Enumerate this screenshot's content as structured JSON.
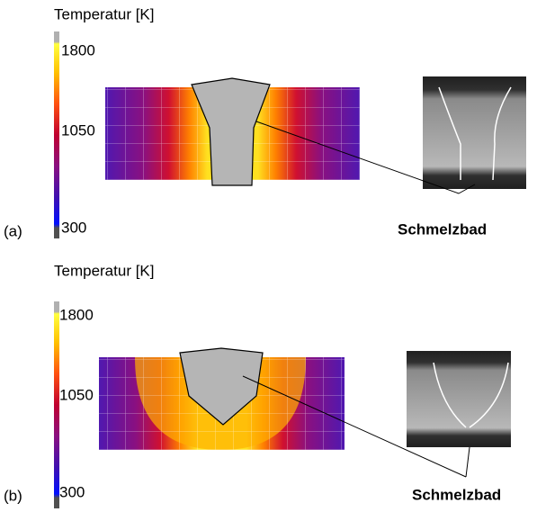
{
  "panels": [
    {
      "label": "(a)",
      "colorbar": {
        "title": "Temperatur [K]",
        "ticks": [
          "1800",
          "1050",
          "300"
        ]
      },
      "annotation": "Schmelzbad"
    },
    {
      "label": "(b)",
      "colorbar": {
        "title": "Temperatur [K]",
        "ticks": [
          "1800",
          "1050",
          "300"
        ]
      },
      "annotation": "Schmelzbad"
    }
  ]
}
